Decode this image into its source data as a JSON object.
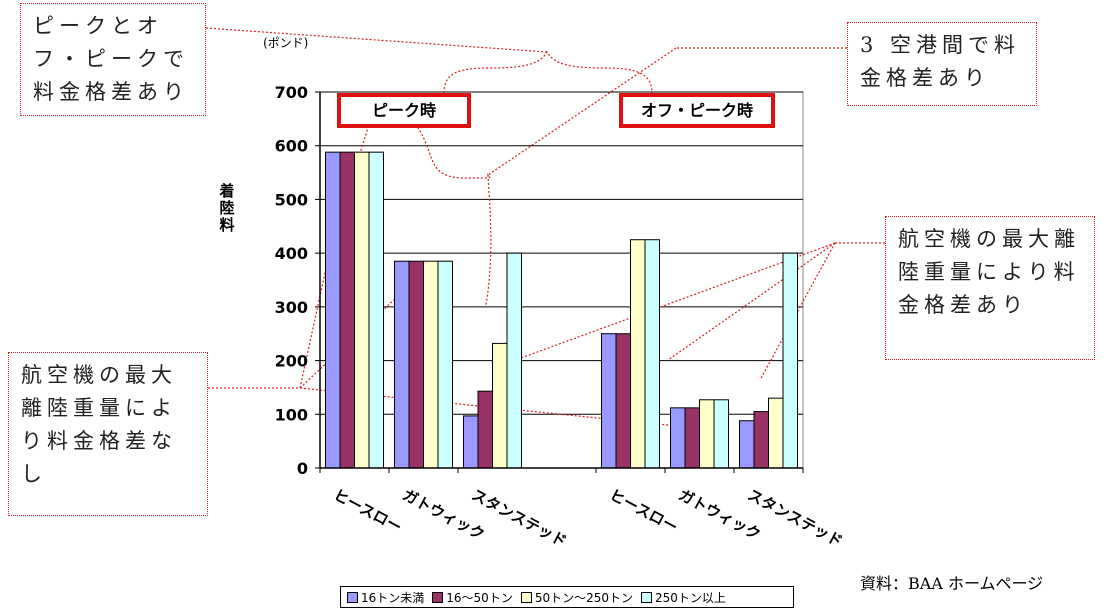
{
  "chart_data": {
    "type": "bar",
    "unit": "(ポンド)",
    "ylabel": "着陸料",
    "ylim": [
      0,
      700
    ],
    "yticks": [
      0,
      100,
      200,
      300,
      400,
      500,
      600,
      700
    ],
    "groups": [
      {
        "label": "ピーク時",
        "categories": [
          "ヒースロー",
          "ガトウィック",
          "スタンステッド"
        ]
      },
      {
        "label": "オフ・ピーク時",
        "categories": [
          "ヒースロー",
          "ガトウィック",
          "スタンステッド"
        ]
      }
    ],
    "categories": [
      "ヒースロー",
      "ガトウィック",
      "スタンステッド",
      "ヒースロー",
      "ガトウィック",
      "スタンステッド"
    ],
    "series": [
      {
        "name": "16トン未満",
        "color": "#9999ff",
        "values": [
          588,
          385,
          97,
          250,
          112,
          88
        ]
      },
      {
        "name": "16～50トン",
        "color": "#993366",
        "values": [
          588,
          385,
          143,
          250,
          112,
          105
        ]
      },
      {
        "name": "50トン～250トン",
        "color": "#ffffcc",
        "values": [
          588,
          385,
          232,
          425,
          127,
          130
        ]
      },
      {
        "name": "250トン以上",
        "color": "#ccffff",
        "values": [
          588,
          385,
          400,
          425,
          127,
          400
        ]
      }
    ],
    "grid": true,
    "legend": "bottom"
  },
  "callouts": {
    "peak_offpeak": "ピークとオフ・ピークで料金格差あり",
    "three_airports": "3 空港間で料金格差あり",
    "weight_diff": "航空機の最大離陸重量により料金格差あり",
    "weight_nodiff": "航空機の最大離陸重量により料金格差なし"
  },
  "source": "資料：BAA ホームページ",
  "colors": {
    "annotation": "#d81e1e",
    "highlight_box": "#e01010"
  }
}
